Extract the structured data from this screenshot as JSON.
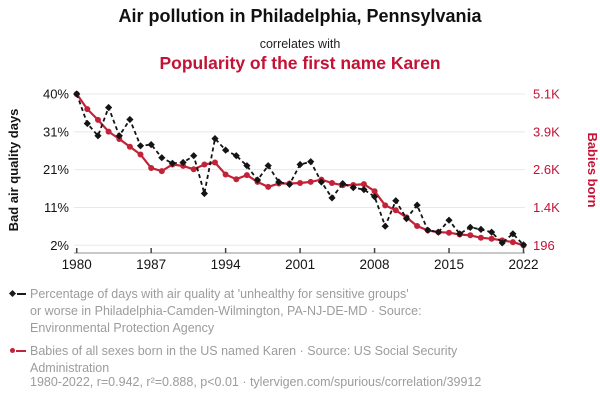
{
  "header": {
    "title": "Air pollution in Philadelphia, Pennsylvania",
    "connector": "correlates with",
    "subtitle": "Popularity of the first name Karen"
  },
  "colors": {
    "ink": "#141414",
    "accent_red": "#c41236",
    "line_red": "#c22338",
    "grid": "#e8e8e8",
    "axis_line": "#b5b5b5",
    "tick": "#444444",
    "legend_gray": "#9c9c9c"
  },
  "chart_data": {
    "type": "line",
    "title": "Air pollution in Philadelphia, Pennsylvania",
    "subtitle": "Popularity of the first name Karen",
    "grid": true,
    "legend_position": "bottom",
    "x": [
      1980,
      1981,
      1982,
      1983,
      1984,
      1985,
      1986,
      1987,
      1988,
      1989,
      1990,
      1991,
      1992,
      1993,
      1994,
      1995,
      1996,
      1997,
      1998,
      1999,
      2000,
      2001,
      2002,
      2003,
      2004,
      2005,
      2006,
      2007,
      2008,
      2009,
      2010,
      2011,
      2012,
      2013,
      2014,
      2015,
      2016,
      2017,
      2018,
      2019,
      2020,
      2021,
      2022
    ],
    "x_ticks": [
      1980,
      1987,
      1994,
      2001,
      2008,
      2015,
      2022
    ],
    "left_axis": {
      "label": "Bad air quality days",
      "min": 2,
      "max": 40,
      "ticks": [
        "40%",
        "31%",
        "21%",
        "11%",
        "2%"
      ]
    },
    "right_axis": {
      "label": "Babies born",
      "min": 196,
      "max": 5100,
      "ticks": [
        "5.1K",
        "3.9K",
        "2.6K",
        "1.4K",
        "196"
      ]
    },
    "series": [
      {
        "name": "Percentage of days with air quality at 'unhealthy for sensitive groups' or worse in Philadelphia-Camden-Wilmington, PA-NJ-DE-MD",
        "axis": "left",
        "style": "dashed",
        "marker": "diamond",
        "values": [
          40.0,
          32.6,
          29.5,
          36.6,
          29.5,
          33.6,
          27.0,
          27.3,
          24.0,
          22.6,
          22.8,
          24.5,
          15.0,
          28.8,
          25.9,
          24.5,
          22.0,
          18.4,
          22.0,
          17.9,
          17.3,
          22.3,
          23.0,
          17.9,
          13.9,
          17.5,
          16.5,
          16.0,
          14.2,
          6.8,
          13.2,
          8.7,
          12.1,
          5.8,
          5.3,
          8.3,
          4.9,
          6.5,
          6.0,
          5.3,
          2.6,
          4.9,
          2.1
        ]
      },
      {
        "name": "Babies of all sexes born in the US named Karen",
        "axis": "right",
        "style": "solid",
        "marker": "circle",
        "values": [
          5100,
          4610,
          4260,
          3880,
          3640,
          3390,
          3140,
          2700,
          2600,
          2815,
          2770,
          2660,
          2815,
          2880,
          2490,
          2340,
          2470,
          2250,
          2090,
          2200,
          2200,
          2215,
          2250,
          2325,
          2215,
          2140,
          2150,
          2180,
          1950,
          1490,
          1330,
          1100,
          820,
          680,
          625,
          605,
          545,
          520,
          440,
          410,
          355,
          300,
          196
        ]
      }
    ]
  },
  "legend": {
    "series": [
      {
        "marker_icon": "black-dashed-diamond-line-icon",
        "lines": [
          "Percentage of days with air quality at 'unhealthy for sensitive groups'",
          "or worse in Philadelphia-Camden-Wilmington, PA-NJ-DE-MD · Source:",
          "Environmental Protection Agency"
        ]
      },
      {
        "marker_icon": "red-solid-line-dot-icon",
        "lines": [
          "Babies of all sexes born in the US named Karen · Source: US Social Security",
          "Administration"
        ]
      }
    ]
  },
  "footer": {
    "text": "1980-2022, r=0.942, r²=0.888, p<0.01 · tylervigen.com/spurious/correlation/39912"
  }
}
